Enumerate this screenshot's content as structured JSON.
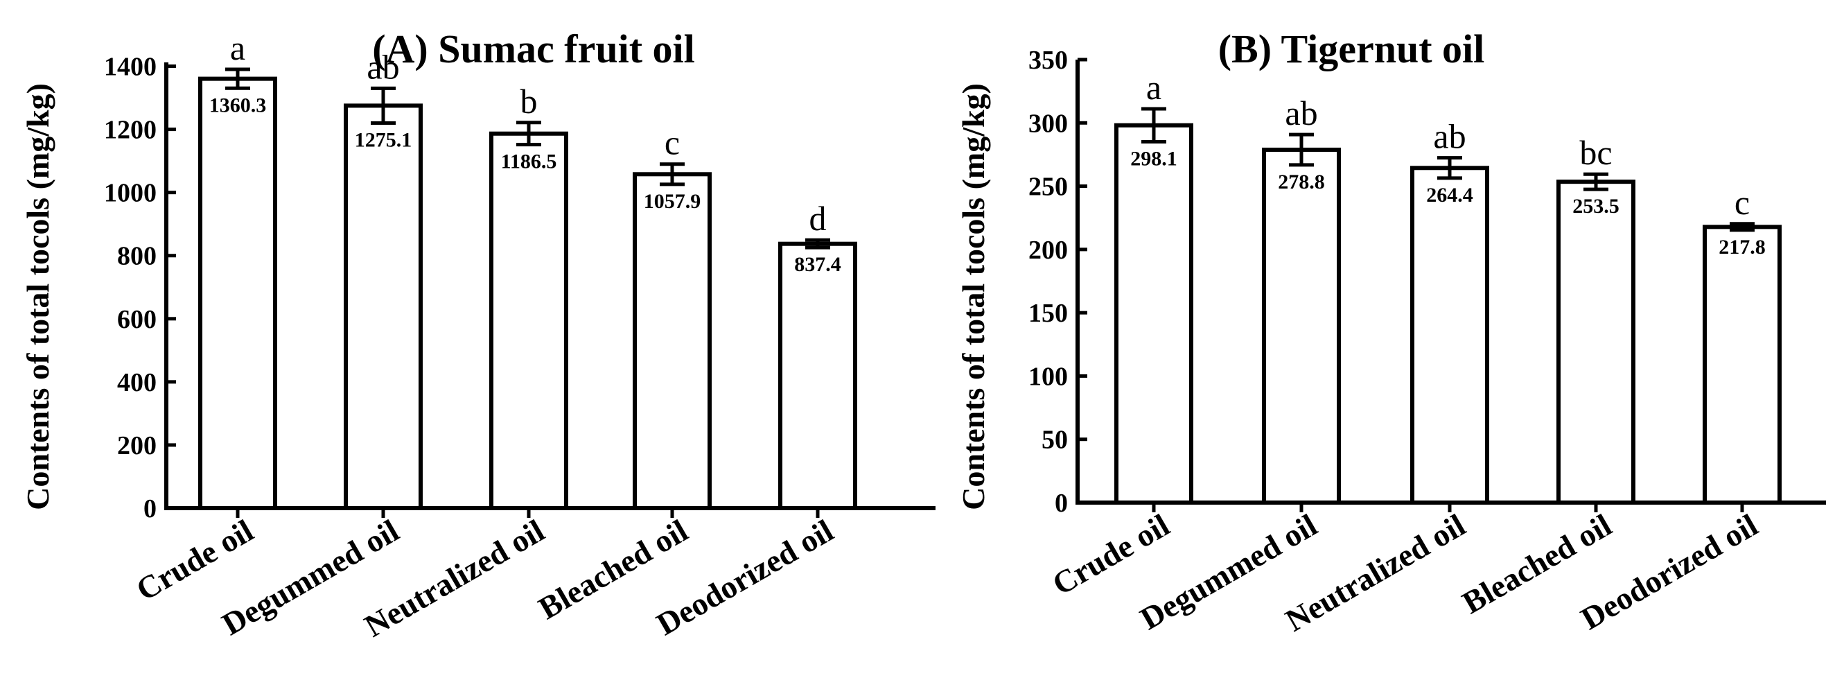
{
  "chart_data": [
    {
      "type": "bar",
      "title": "(A) Sumac fruit oil",
      "xlabel": "",
      "ylabel": "Contents of total tocols (mg/kg)",
      "categories": [
        "Crude oil",
        "Degummed oil",
        "Neutralized oil",
        "Bleached oil",
        "Deodorized oil"
      ],
      "values": [
        1360.3,
        1275.1,
        1186.5,
        1057.9,
        837.4
      ],
      "value_labels": [
        "1360.3",
        "1275.1",
        "1186.5",
        "1057.9",
        "837.4"
      ],
      "errors": [
        30,
        55,
        35,
        32,
        12
      ],
      "significance": [
        "a",
        "ab",
        "b",
        "c",
        "d"
      ],
      "ylim": [
        0,
        1500
      ],
      "yticks": [
        0,
        200,
        400,
        600,
        800,
        1000,
        1200,
        1400
      ],
      "grid": false,
      "colors": {
        "bar_fill": "#ffffff",
        "bar_stroke": "#000000"
      }
    },
    {
      "type": "bar",
      "title": "(B) Tigernut oil",
      "xlabel": "",
      "ylabel": "Contents of total tocols (mg/kg)",
      "categories": [
        "Crude oil",
        "Degummed oil",
        "Neutralized oil",
        "Bleached oil",
        "Deodorized oil"
      ],
      "values": [
        298.1,
        278.8,
        264.4,
        253.5,
        217.8
      ],
      "value_labels": [
        "298.1",
        "278.8",
        "264.4",
        "253.5",
        "217.8"
      ],
      "errors": [
        13,
        12,
        8,
        6,
        2.5
      ],
      "significance": [
        "a",
        "ab",
        "ab",
        "bc",
        "c"
      ],
      "ylim": [
        0,
        350
      ],
      "yticks": [
        0,
        50,
        100,
        150,
        200,
        250,
        300,
        350
      ],
      "grid": false,
      "colors": {
        "bar_fill": "#ffffff",
        "bar_stroke": "#000000"
      }
    }
  ]
}
